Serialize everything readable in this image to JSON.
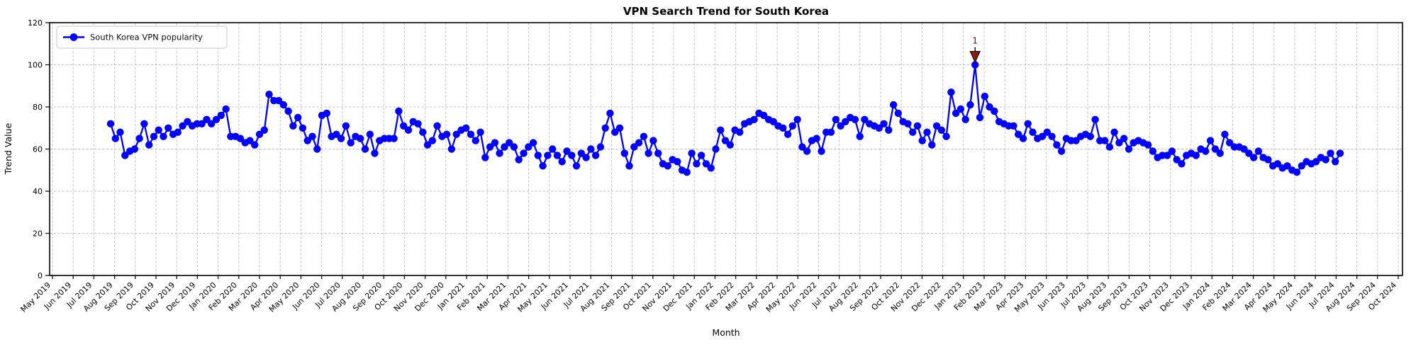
{
  "title": "VPN Search Trend for South Korea",
  "axes": {
    "x_label": "Month",
    "y_label": "Trend Value",
    "y_ticks": [
      0,
      20,
      40,
      60,
      80,
      100,
      120
    ],
    "x_tick_labels": [
      "May 2019",
      "Jun 2019",
      "Jul 2019",
      "Aug 2019",
      "Sep 2019",
      "Oct 2019",
      "Nov 2019",
      "Dec 2019",
      "Jan 2020",
      "Feb 2020",
      "Mar 2020",
      "Apr 2020",
      "May 2020",
      "Jun 2020",
      "Jul 2020",
      "Aug 2020",
      "Sep 2020",
      "Oct 2020",
      "Nov 2020",
      "Dec 2020",
      "Jan 2021",
      "Feb 2021",
      "Mar 2021",
      "Apr 2021",
      "May 2021",
      "Jun 2021",
      "Jul 2021",
      "Aug 2021",
      "Sep 2021",
      "Oct 2021",
      "Nov 2021",
      "Dec 2021",
      "Jan 2022",
      "Feb 2022",
      "Mar 2022",
      "Apr 2022",
      "May 2022",
      "Jun 2022",
      "Jul 2022",
      "Aug 2022",
      "Sep 2022",
      "Oct 2022",
      "Nov 2022",
      "Dec 2022",
      "Jan 2023",
      "Feb 2023",
      "Mar 2023",
      "Apr 2023",
      "May 2023",
      "Jun 2023",
      "Jul 2023",
      "Aug 2023",
      "Sep 2023",
      "Oct 2023",
      "Nov 2023",
      "Dec 2023",
      "Jan 2024",
      "Feb 2024",
      "Mar 2024",
      "Apr 2024",
      "May 2024",
      "Jun 2024",
      "Jul 2024",
      "Aug 2024",
      "Sep 2024",
      "Oct 2024"
    ]
  },
  "legend": {
    "label": "South Korea VPN popularity"
  },
  "annotation": {
    "label": "1",
    "text_color": "#8b0000",
    "marker_fill": "#8b1a10",
    "marker_edge": "#000000",
    "target": "series maximum (100)"
  },
  "colors": {
    "series": "#0000ff",
    "grid": "#c4c4c4",
    "frame": "#000000",
    "background": "#ffffff"
  },
  "chart_data": {
    "type": "line",
    "title": "VPN Search Trend for South Korea",
    "xlabel": "Month",
    "ylabel": "Trend Value",
    "ylim": [
      0,
      120
    ],
    "grid": true,
    "legend_position": "upper left",
    "x_unit": "weekly samples",
    "points_start_near": "Aug 2019",
    "points_end_near": "Jul 2024",
    "x_tick_labels": [
      "May 2019",
      "Jun 2019",
      "Jul 2019",
      "Aug 2019",
      "Sep 2019",
      "Oct 2019",
      "Nov 2019",
      "Dec 2019",
      "Jan 2020",
      "Feb 2020",
      "Mar 2020",
      "Apr 2020",
      "May 2020",
      "Jun 2020",
      "Jul 2020",
      "Aug 2020",
      "Sep 2020",
      "Oct 2020",
      "Nov 2020",
      "Dec 2020",
      "Jan 2021",
      "Feb 2021",
      "Mar 2021",
      "Apr 2021",
      "May 2021",
      "Jun 2021",
      "Jul 2021",
      "Aug 2021",
      "Sep 2021",
      "Oct 2021",
      "Nov 2021",
      "Dec 2021",
      "Jan 2022",
      "Feb 2022",
      "Mar 2022",
      "Apr 2022",
      "May 2022",
      "Jun 2022",
      "Jul 2022",
      "Aug 2022",
      "Sep 2022",
      "Oct 2022",
      "Nov 2022",
      "Dec 2022",
      "Jan 2023",
      "Feb 2023",
      "Mar 2023",
      "Apr 2023",
      "May 2023",
      "Jun 2023",
      "Jul 2023",
      "Aug 2023",
      "Sep 2023",
      "Oct 2023",
      "Nov 2023",
      "Dec 2023",
      "Jan 2024",
      "Feb 2024",
      "Mar 2024",
      "Apr 2024",
      "May 2024",
      "Jun 2024",
      "Jul 2024",
      "Aug 2024",
      "Sep 2024",
      "Oct 2024"
    ],
    "y_ticks": [
      0,
      20,
      40,
      60,
      80,
      100,
      120
    ],
    "series": [
      {
        "name": "South Korea VPN popularity",
        "color": "#0000ff",
        "values": [
          72,
          65,
          68,
          57,
          59,
          60,
          65,
          72,
          62,
          66,
          69,
          66,
          70,
          67,
          68,
          71,
          73,
          71,
          72,
          72,
          74,
          72,
          74,
          76,
          79,
          66,
          66,
          65,
          63,
          64,
          62,
          67,
          69,
          86,
          83,
          83,
          81,
          78,
          71,
          75,
          70,
          64,
          66,
          60,
          76,
          77,
          66,
          67,
          65,
          71,
          63,
          66,
          65,
          60,
          67,
          58,
          64,
          65,
          65,
          65,
          78,
          71,
          69,
          73,
          72,
          68,
          62,
          64,
          71,
          66,
          67,
          60,
          67,
          69,
          70,
          67,
          64,
          68,
          56,
          61,
          63,
          58,
          61,
          63,
          61,
          55,
          58,
          61,
          63,
          57,
          52,
          57,
          60,
          57,
          54,
          59,
          57,
          52,
          58,
          56,
          60,
          57,
          61,
          70,
          77,
          68,
          70,
          58,
          52,
          61,
          63,
          66,
          58,
          64,
          58,
          53,
          52,
          55,
          54,
          50,
          49,
          58,
          53,
          57,
          53,
          51,
          60,
          69,
          64,
          62,
          69,
          68,
          72,
          73,
          74,
          77,
          76,
          74,
          73,
          71,
          70,
          67,
          71,
          74,
          61,
          59,
          64,
          65,
          59,
          68,
          68,
          74,
          71,
          73,
          75,
          74,
          66,
          74,
          72,
          71,
          70,
          72,
          69,
          81,
          77,
          73,
          72,
          68,
          71,
          64,
          68,
          62,
          71,
          69,
          66,
          87,
          77,
          79,
          74,
          81,
          100,
          75,
          85,
          80,
          78,
          73,
          72,
          71,
          71,
          67,
          65,
          72,
          68,
          65,
          66,
          68,
          66,
          62,
          59,
          65,
          64,
          64,
          66,
          67,
          66,
          74,
          64,
          64,
          61,
          68,
          63,
          65,
          60,
          63,
          64,
          63,
          62,
          59,
          56,
          57,
          57,
          59,
          55,
          53,
          57,
          58,
          57,
          60,
          59,
          64,
          60,
          58,
          67,
          63,
          61,
          61,
          60,
          58,
          56,
          59,
          56,
          55,
          52,
          53,
          51,
          52,
          50,
          49,
          52,
          54,
          53,
          54,
          56,
          55,
          58,
          54,
          58
        ]
      }
    ],
    "annotations": [
      {
        "label": "1",
        "at": "maximum value 100",
        "near_x": "Feb 2023"
      }
    ]
  }
}
